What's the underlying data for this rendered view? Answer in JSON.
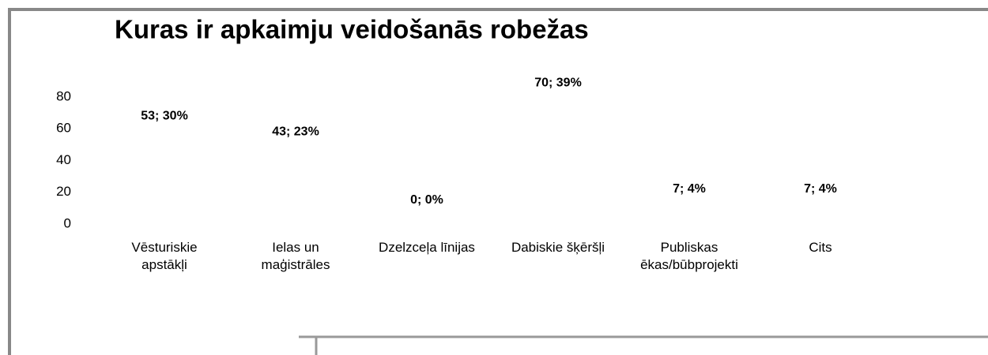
{
  "chart_data": {
    "type": "bar",
    "title": "Kuras ir apkaimju veidošanās robežas",
    "categories": [
      "Vēsturiskie apstākļi",
      "Ielas un maģistrāles",
      "Dzelzceļa līnijas",
      "Dabiskie šķēršļi",
      "Publiskas ēkas/būbprojekti",
      "Cits"
    ],
    "values": [
      53,
      43,
      0,
      70,
      7,
      7
    ],
    "value_labels": [
      "53; 30%",
      "43; 23%",
      "0; 0%",
      "70; 39%",
      "7; 4%",
      "7; 4%"
    ],
    "color": "#ffffff",
    "ylim": [
      0,
      80
    ],
    "yticks": [
      0,
      20,
      40,
      60,
      80
    ],
    "grid": false
  }
}
